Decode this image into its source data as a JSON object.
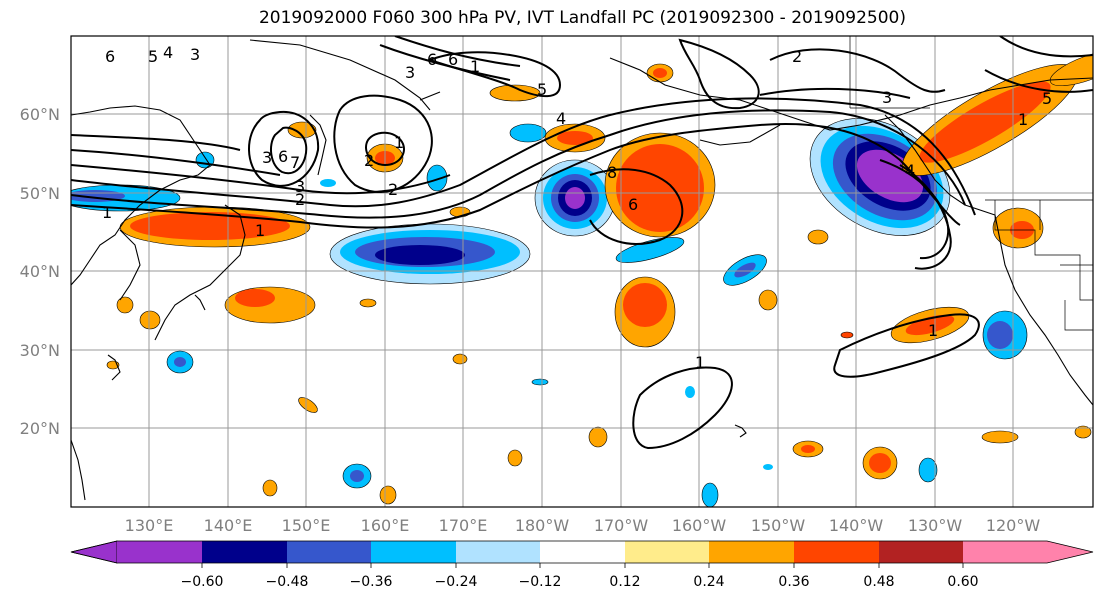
{
  "title": "2019092000 F060 300 hPa PV, IVT Landfall PC (2019092300 - 2019092500)",
  "map": {
    "lon_ticks": [
      "130°E",
      "140°E",
      "150°E",
      "160°E",
      "170°E",
      "180°W",
      "170°W",
      "160°W",
      "150°W",
      "140°W",
      "130°W",
      "120°W"
    ],
    "lat_ticks": [
      "60°N",
      "50°N",
      "40°N",
      "30°N",
      "20°N"
    ],
    "tick_color": "#808080",
    "contour_labels": [
      "6",
      "5",
      "4",
      "3",
      "6",
      "7",
      "2",
      "1",
      "3",
      "2",
      "2",
      "3",
      "1",
      "6",
      "5",
      "4",
      "3",
      "2",
      "1",
      "3",
      "5",
      "1",
      "8",
      "6",
      "1",
      "1",
      "4",
      "6",
      "1"
    ]
  },
  "colorbar": {
    "ticks": [
      "−0.60",
      "−0.48",
      "−0.36",
      "−0.24",
      "−0.12",
      "0.12",
      "0.24",
      "0.36",
      "0.48",
      "0.60"
    ],
    "colors": [
      "#9932CC",
      "#00008B",
      "#3657CC",
      "#00BFFF",
      "#B0E2FF",
      "#FFFFFF",
      "#FFEC8B",
      "#FFA500",
      "#FF4500",
      "#B22222",
      "#FF82AB"
    ]
  }
}
